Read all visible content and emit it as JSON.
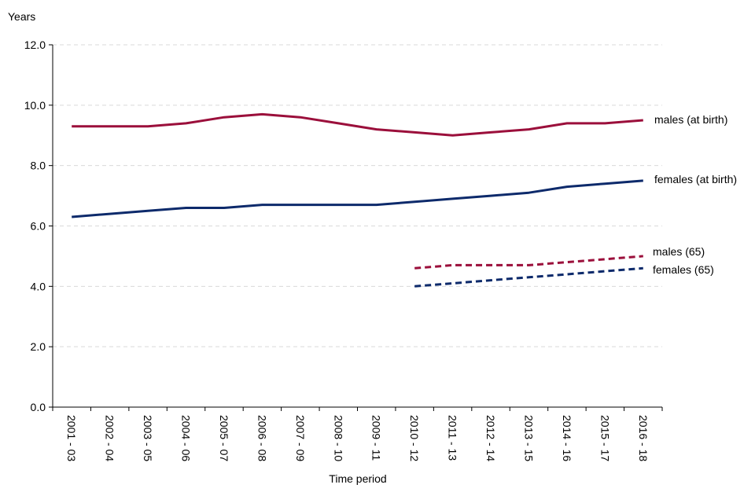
{
  "chart_data": {
    "type": "line",
    "title": "",
    "ylabel": "Years",
    "xlabel": "Time period",
    "ylim": [
      0,
      12
    ],
    "yticks": [
      "0.0",
      "2.0",
      "4.0",
      "6.0",
      "8.0",
      "10.0",
      "12.0"
    ],
    "grid": "horizontal dashed",
    "categories": [
      "2001 - 03",
      "2002 - 04",
      "2003 - 05",
      "2004 - 06",
      "2005 - 07",
      "2006 - 08",
      "2007 - 09",
      "2008 - 10",
      "2009 - 11",
      "2010 - 12",
      "2011 - 13",
      "2012 - 14",
      "2013 - 15",
      "2014 - 16",
      "2015 - 17",
      "2016 - 18"
    ],
    "series": [
      {
        "name": "males (at birth)",
        "color": "#9b0f3b",
        "style": "solid",
        "values": [
          9.3,
          9.3,
          9.3,
          9.4,
          9.6,
          9.7,
          9.6,
          9.4,
          9.2,
          9.1,
          9.0,
          9.1,
          9.2,
          9.4,
          9.4,
          9.5
        ]
      },
      {
        "name": "females (at birth)",
        "color": "#0d2a6b",
        "style": "solid",
        "values": [
          6.3,
          6.4,
          6.5,
          6.6,
          6.6,
          6.7,
          6.7,
          6.7,
          6.7,
          6.8,
          6.9,
          7.0,
          7.1,
          7.3,
          7.4,
          7.5
        ]
      },
      {
        "name": "males (65)",
        "color": "#9b0f3b",
        "style": "dashed",
        "values": [
          null,
          null,
          null,
          null,
          null,
          null,
          null,
          null,
          null,
          4.6,
          4.7,
          4.7,
          4.7,
          4.8,
          4.9,
          5.0
        ]
      },
      {
        "name": "females (65)",
        "color": "#0d2a6b",
        "style": "dashed",
        "values": [
          null,
          null,
          null,
          null,
          null,
          null,
          null,
          null,
          null,
          4.0,
          4.1,
          4.2,
          4.3,
          4.4,
          4.5,
          4.6
        ]
      }
    ]
  }
}
